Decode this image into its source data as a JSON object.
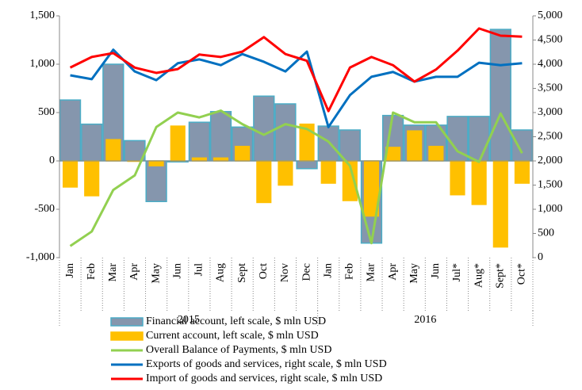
{
  "chart_data": {
    "type": "combo",
    "categories": [
      "Jan",
      "Feb",
      "Mar",
      "Apr",
      "May",
      "Jun",
      "Jul",
      "Aug",
      "Sept",
      "Oct",
      "Nov",
      "Dec",
      "Jan",
      "Feb",
      "Mar",
      "Apr",
      "May",
      "Jun",
      "Jul*",
      "Aug*",
      "Sept*",
      "Oct*"
    ],
    "x_groups": [
      {
        "label": "2015",
        "start": 0,
        "end": 11
      },
      {
        "label": "2016",
        "start": 12,
        "end": 21
      }
    ],
    "series": [
      {
        "name": "Financial account, left scale, $ mln USD",
        "type": "bar",
        "color": "#8596ad",
        "edge": "#4bacc6",
        "axis": "y",
        "values": [
          630,
          380,
          1000,
          210,
          -420,
          -10,
          400,
          510,
          350,
          670,
          590,
          -80,
          360,
          320,
          -850,
          470,
          370,
          370,
          460,
          460,
          1360,
          320
        ]
      },
      {
        "name": "Current account, left scale, $ mln USD",
        "type": "bar",
        "color": "#ffc000",
        "edge": "#ffc000",
        "axis": "y",
        "values": [
          -270,
          -360,
          220,
          0,
          -50,
          360,
          30,
          30,
          150,
          -430,
          -250,
          380,
          -230,
          -410,
          -570,
          140,
          310,
          150,
          -350,
          -450,
          -890,
          -230
        ]
      },
      {
        "name": "Overall Balance of Payments, $ mln USD",
        "type": "line",
        "color": "#92d050",
        "axis": "y",
        "values": [
          -880,
          -730,
          -300,
          -150,
          350,
          500,
          450,
          520,
          380,
          270,
          380,
          330,
          200,
          -50,
          -850,
          500,
          400,
          400,
          100,
          -10,
          490,
          80
        ]
      },
      {
        "name": "Exports of goods and services, right scale, $ mln USD",
        "type": "line",
        "color": "#0070c0",
        "axis": "y2",
        "values": [
          3770,
          3690,
          4300,
          3850,
          3670,
          4020,
          4100,
          3980,
          4210,
          4050,
          3850,
          4260,
          2700,
          3360,
          3740,
          3840,
          3640,
          3740,
          3740,
          4030,
          3980,
          4020
        ]
      },
      {
        "name": "Import of goods and services, right scale, $ mln USD",
        "type": "line",
        "color": "#ff0000",
        "axis": "y2",
        "values": [
          3930,
          4150,
          4230,
          3930,
          3820,
          3900,
          4200,
          4150,
          4260,
          4560,
          4210,
          4070,
          3030,
          3930,
          4150,
          3980,
          3640,
          3890,
          4280,
          4740,
          4590,
          4570
        ]
      }
    ],
    "ylim": [
      -1000,
      1500
    ],
    "yticks": [
      {
        "value": -1000,
        "label": "-1,000"
      },
      -500,
      0,
      500,
      {
        "value": 1000,
        "label": "1,000"
      },
      {
        "value": 1500,
        "label": "1,500"
      }
    ],
    "y2lim": [
      0,
      5000
    ],
    "y2ticks": [
      0,
      500,
      {
        "value": 1000,
        "label": "1,000"
      },
      {
        "value": 1500,
        "label": "1,500"
      },
      {
        "value": 2000,
        "label": "2,000"
      },
      {
        "value": 2500,
        "label": "2,500"
      },
      {
        "value": 3000,
        "label": "3,000"
      },
      {
        "value": 3500,
        "label": "3,500"
      },
      {
        "value": 4000,
        "label": "4,000"
      },
      {
        "value": 4500,
        "label": "4,500"
      },
      {
        "value": 5000,
        "label": "5,000"
      }
    ]
  }
}
